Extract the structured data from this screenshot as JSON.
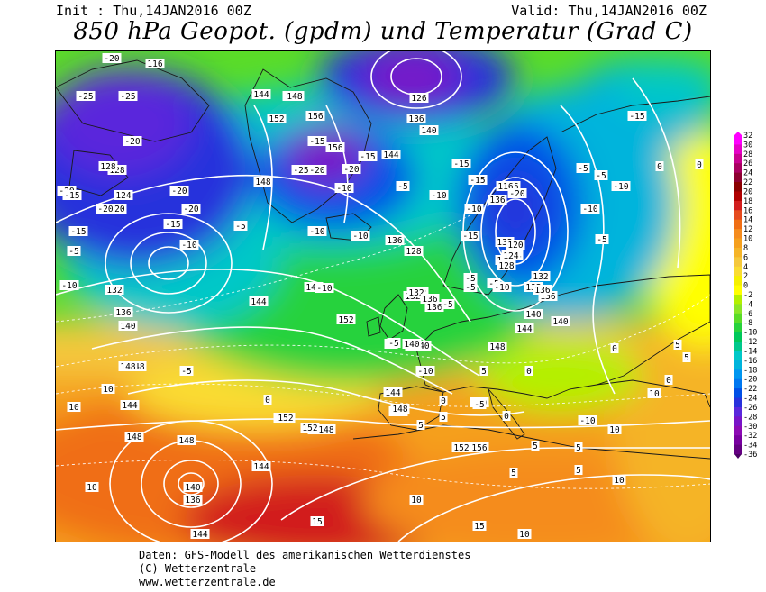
{
  "header": {
    "init": "Init : Thu,14JAN2016 00Z",
    "valid": "Valid: Thu,14JAN2016 00Z",
    "title": "850 hPa Geopot. (gpdm) und Temperatur (Grad C)"
  },
  "footer": {
    "line1": "Daten: GFS-Modell des amerikanischen Wetterdienstes",
    "line2": "(C) Wetterzentrale",
    "line3": "www.wetterzentrale.de"
  },
  "colors": {
    "land_outline": "#1a1a1a",
    "contour_line": "#ffffff",
    "label_bg": "#ffffff",
    "label_text": "#000000"
  },
  "color_scale": {
    "values": [
      "32",
      "30",
      "28",
      "26",
      "24",
      "22",
      "20",
      "18",
      "16",
      "14",
      "12",
      "10",
      "8",
      "6",
      "4",
      "2",
      "0",
      "-2",
      "-4",
      "-6",
      "-8",
      "-10",
      "-12",
      "-14",
      "-16",
      "-18",
      "-20",
      "-22",
      "-24",
      "-26",
      "-28",
      "-30",
      "-32",
      "-34",
      "-36"
    ],
    "colors": [
      "#ff00ff",
      "#e600c8",
      "#c80090",
      "#a80060",
      "#8c0030",
      "#8a0000",
      "#b00000",
      "#d21e1e",
      "#e64b1e",
      "#f06e14",
      "#f58c1e",
      "#f5a01e",
      "#f5b428",
      "#f5c83c",
      "#fadc32",
      "#f5f000",
      "#ffff00",
      "#b4f000",
      "#8ce628",
      "#5adc28",
      "#28d23c",
      "#00c85a",
      "#00c88c",
      "#00c8c8",
      "#00b4dc",
      "#0096f0",
      "#0078f0",
      "#0050e6",
      "#2832dc",
      "#5a28dc",
      "#7814c8",
      "#8c0ab4",
      "#7800a0",
      "#640082",
      "#4b0064"
    ]
  },
  "contours": {
    "geopotential_labels": [
      "116",
      "116",
      "120",
      "124",
      "128",
      "128",
      "132",
      "136",
      "140",
      "144",
      "148",
      "152",
      "156",
      "144",
      "148",
      "148",
      "152",
      "156",
      "132",
      "136",
      "140",
      "144",
      "148",
      "152",
      "156",
      "136",
      "136",
      "126",
      "132",
      "140",
      "148",
      "148",
      "144",
      "136",
      "132",
      "140",
      "128",
      "132",
      "136",
      "140",
      "144",
      "148",
      "136",
      "132",
      "128",
      "124",
      "120",
      "116",
      "124",
      "132",
      "136",
      "140",
      "148",
      "152",
      "156",
      "144",
      "148",
      "152",
      "144",
      "140",
      "136",
      "148",
      "144",
      "148",
      "152",
      "136",
      "140",
      "144",
      "148"
    ],
    "temperature_labels": [
      "-20",
      "-25",
      "-25",
      "-20",
      "-20",
      "-15",
      "-15",
      "-20",
      "-20",
      "-20",
      "-15",
      "-10",
      "-5",
      "-5",
      "-5",
      "-10",
      "-10",
      "-15",
      "-20",
      "-25",
      "-20",
      "-15",
      "-10",
      "-5",
      "-10",
      "-15",
      "-10",
      "-5",
      "-5",
      "-10",
      "-15",
      "-20",
      "-15",
      "-10",
      "-5",
      "-5",
      "-10",
      "-15",
      "-5",
      "0",
      "0",
      "0",
      "0",
      "5",
      "5",
      "0",
      "0",
      "0",
      "5",
      "10",
      "10",
      "10",
      "5",
      "5",
      "5",
      "10",
      "10",
      "10",
      "15",
      "15",
      "5",
      "5",
      "10",
      "10",
      "10",
      "-10",
      "0",
      "5",
      "-10",
      "-5",
      "-5",
      "-10",
      "-5",
      "-5",
      "0",
      "-5",
      "-10",
      "-10"
    ]
  }
}
